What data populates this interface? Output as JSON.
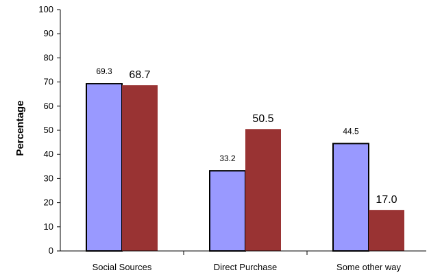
{
  "chart_data": {
    "type": "bar",
    "title": "",
    "xlabel": "",
    "ylabel": "Percentage",
    "ylim": [
      0,
      100
    ],
    "yticks": [
      0,
      10,
      20,
      30,
      40,
      50,
      60,
      70,
      80,
      90,
      100
    ],
    "yticks_text": [
      "0",
      "10",
      "20",
      "30",
      "40",
      "50",
      "60",
      "70",
      "80",
      "90",
      "100"
    ],
    "categories": [
      "Social Sources",
      "Direct Purchase",
      "Some other way"
    ],
    "series": [
      {
        "values": [
          69.3,
          33.2,
          44.5
        ],
        "labels": [
          "69.3",
          "33.2",
          "44.5"
        ],
        "color": "#9999ff"
      },
      {
        "values": [
          68.7,
          50.5,
          17.0
        ],
        "labels": [
          "68.7",
          "50.5",
          "17.0"
        ],
        "color": "#993333"
      }
    ],
    "grid": false,
    "legend": "none"
  }
}
